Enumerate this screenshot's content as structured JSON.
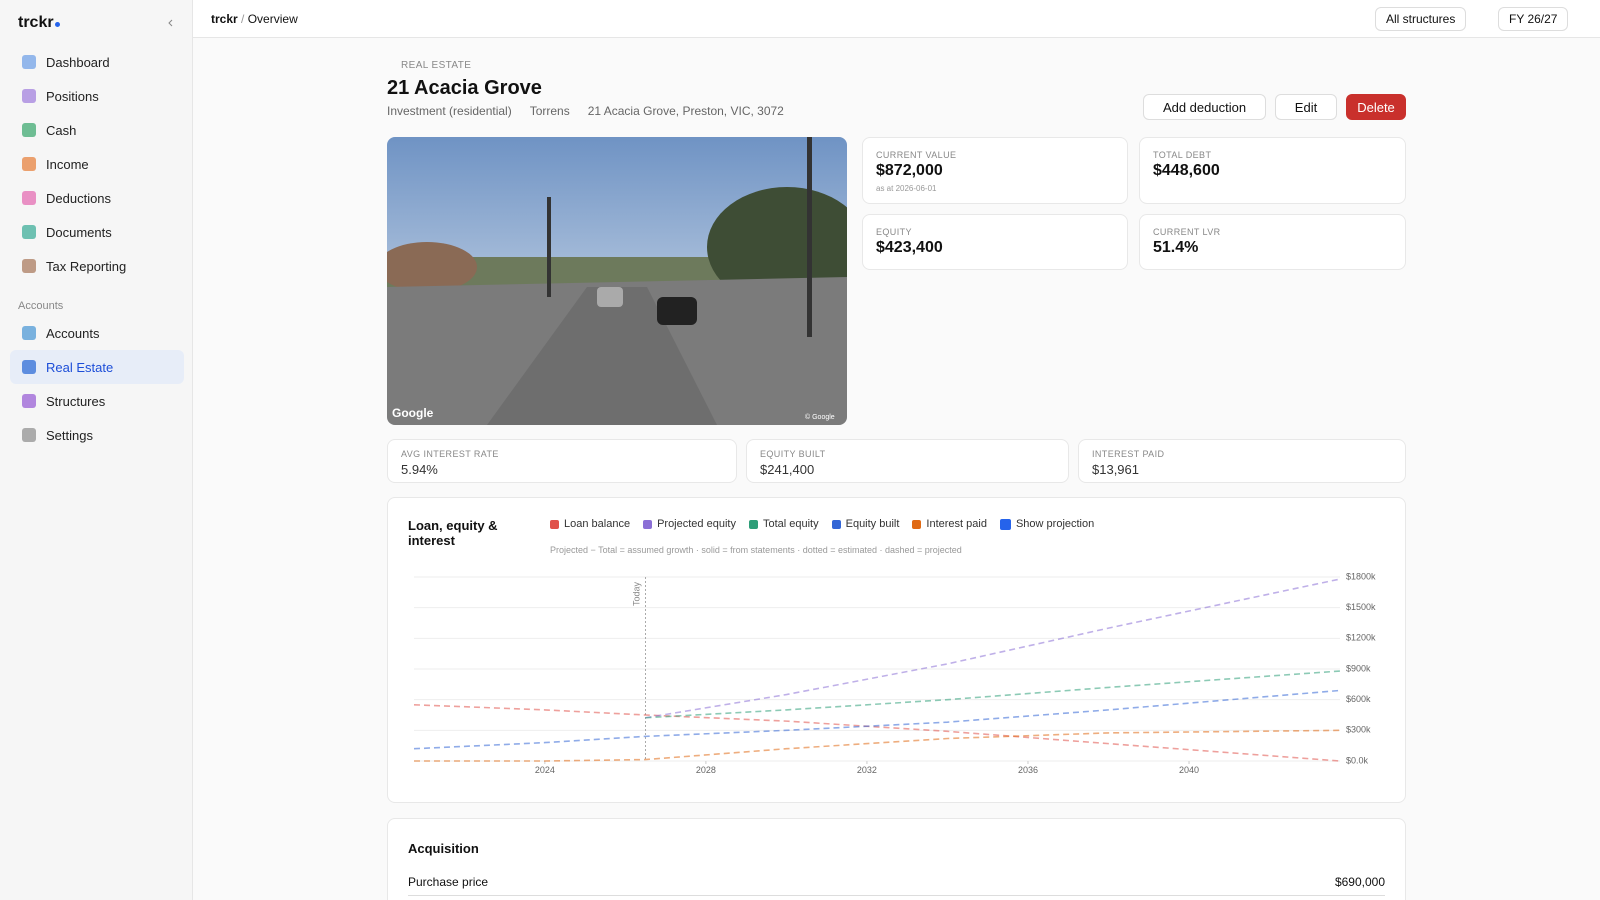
{
  "sidebar": {
    "brand": "trckr",
    "nav": [
      "Dashboard",
      "Positions",
      "Cash",
      "Income",
      "Deductions",
      "Documents",
      "Tax Reporting"
    ],
    "section": "Accounts",
    "accounts_nav": [
      "Accounts",
      "Real Estate",
      "Structures",
      "Settings"
    ]
  },
  "topbar": {
    "breadcrumb": [
      "trckr",
      "Overview"
    ],
    "filters": [
      "All structures",
      "FY 26/27"
    ]
  },
  "header": {
    "back": "REAL ESTATE",
    "title": "21 Acacia Grove",
    "meta": [
      "Investment (residential)",
      "Torrens",
      "21 Acacia Grove, Preston, VIC, 3072"
    ],
    "actions": [
      "Add deduction",
      "Edit",
      "Delete"
    ]
  },
  "photo": {
    "watermark": "Google",
    "copyright": "© Google"
  },
  "cards": [
    {
      "label": "CURRENT VALUE",
      "value": "$872,000",
      "sub": "as at 2026-06-01"
    },
    {
      "label": "TOTAL DEBT",
      "value": "$448,600"
    },
    {
      "label": "EQUITY",
      "value": "$423,400"
    },
    {
      "label": "CURRENT LVR",
      "value": "51.4%"
    }
  ],
  "metrics": [
    {
      "label": "AVG INTEREST RATE",
      "value": "5.94%"
    },
    {
      "label": "EQUITY BUILT",
      "value": "$241,400"
    },
    {
      "label": "INTEREST PAID",
      "value": "$13,961"
    }
  ],
  "chart_data": {
    "type": "line",
    "title": "Loan, equity & interest",
    "note": "Projected − Total = assumed growth · solid = from statements · dotted = estimated · dashed = projected",
    "toggle": "Show projection",
    "annotations": [
      {
        "text": "Today",
        "x": 2026.5
      }
    ],
    "x": [
      2020.75,
      2024,
      2026.5,
      2030,
      2034,
      2038,
      2043.75
    ],
    "series": [
      {
        "name": "Loan balance",
        "color": "#e0524a",
        "values": [
          550,
          500,
          450,
          390,
          290,
          170,
          0
        ]
      },
      {
        "name": "Projected equity",
        "color": "#8b6fd6",
        "values": [
          null,
          null,
          423,
          650,
          950,
          1300,
          1780
        ]
      },
      {
        "name": "Total equity",
        "color": "#2e9e78",
        "values": [
          null,
          null,
          423,
          500,
          600,
          720,
          880
        ]
      },
      {
        "name": "Equity built",
        "color": "#3366d6",
        "values": [
          120,
          180,
          241,
          300,
          380,
          500,
          690
        ]
      },
      {
        "name": "Interest paid",
        "color": "#e06a14",
        "values": [
          0,
          0,
          14,
          120,
          220,
          275,
          300
        ]
      }
    ],
    "xlim": [
      2020.75,
      2043.75
    ],
    "xticks": [
      2024,
      2028,
      2032,
      2036,
      2040
    ],
    "ylim": [
      0,
      1800
    ],
    "yticks": [
      {
        "value": 0,
        "label": "$0.0k"
      },
      {
        "value": 300,
        "label": "$300k"
      },
      {
        "value": 600,
        "label": "$600k"
      },
      {
        "value": 900,
        "label": "$900k"
      },
      {
        "value": 1200,
        "label": "$1200k"
      },
      {
        "value": 1500,
        "label": "$1500k"
      },
      {
        "value": 1800,
        "label": "$1800k"
      }
    ],
    "grid": true
  },
  "acquisition": {
    "title": "Acquisition",
    "rows": [
      [
        "Purchase price",
        "$690,000"
      ]
    ]
  }
}
